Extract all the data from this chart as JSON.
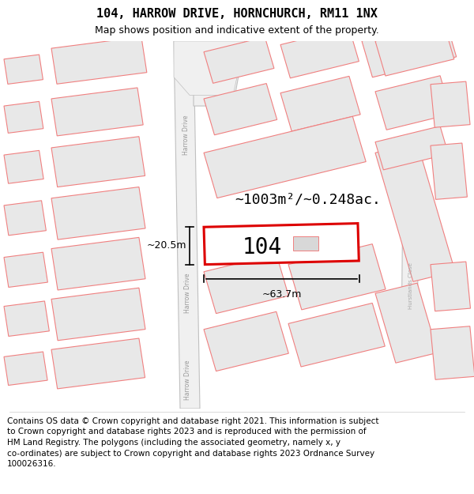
{
  "title": "104, HARROW DRIVE, HORNCHURCH, RM11 1NX",
  "subtitle": "Map shows position and indicative extent of the property.",
  "footer_text": "Contains OS data © Crown copyright and database right 2021. This information is subject\nto Crown copyright and database rights 2023 and is reproduced with the permission of\nHM Land Registry. The polygons (including the associated geometry, namely x, y\nco-ordinates) are subject to Crown copyright and database rights 2023 Ordnance Survey\n100026316.",
  "bg_color": "#ffffff",
  "building_fill": "#e8e8e8",
  "building_edge": "#f08080",
  "highlight_fill": "#ffffff",
  "highlight_edge": "#dd0000",
  "road_fill": "#f0f0f0",
  "road_edge": "#c0c0c0",
  "area_text": "~1003m²/~0.248ac.",
  "label_104": "104",
  "dim_width": "~63.7m",
  "dim_height": "~20.5m",
  "road_label": "Harrow Drive",
  "close_label": "Hurstlands Close",
  "title_fontsize": 11,
  "subtitle_fontsize": 9,
  "footer_fontsize": 7.5
}
